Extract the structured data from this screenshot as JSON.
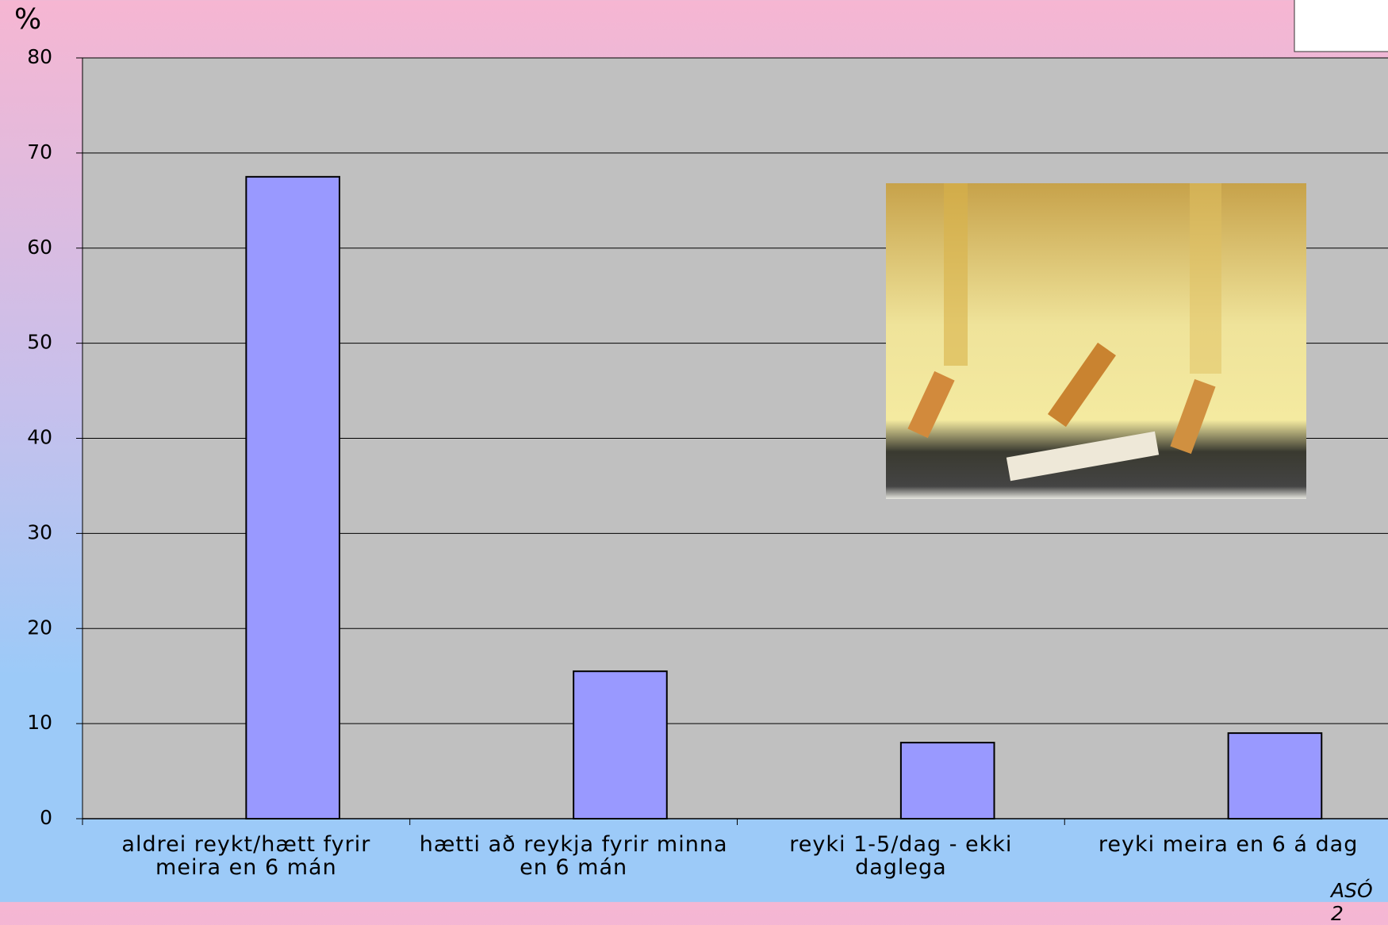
{
  "chart_data": {
    "type": "bar",
    "y_label": "%",
    "categories": [
      "aldrei reykt/hætt fyrir meira en 6 mán",
      "hætti að reykja fyrir minna en 6 mán",
      "reyki 1-5/dag - ekki daglega",
      "reyki meira en 6 á dag"
    ],
    "values": [
      67.5,
      15.5,
      8,
      9
    ],
    "color": "#9999ff",
    "ylim": [
      0,
      80
    ],
    "yticks": [
      0,
      10,
      20,
      30,
      40,
      50,
      60,
      70,
      80
    ],
    "grid": true,
    "footnote": "ASÓ 2"
  }
}
